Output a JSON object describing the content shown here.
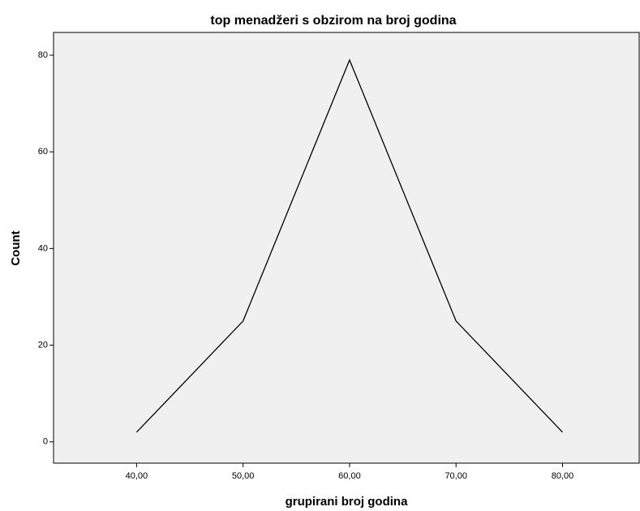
{
  "chart_data": {
    "type": "line",
    "title": "top menadžeri s obzirom na broj godina",
    "x_label": "grupirani broj godina",
    "y_label": "Count",
    "x": [
      40,
      50,
      60,
      70,
      80
    ],
    "series": [
      {
        "color": "#000000",
        "values": [
          2,
          25,
          79,
          25,
          2
        ]
      }
    ],
    "xlim": [
      32.2,
      87.2
    ],
    "xticks": [
      {
        "value": 40,
        "label": "40,00"
      },
      {
        "value": 50,
        "label": "50,00"
      },
      {
        "value": 60,
        "label": "60,00"
      },
      {
        "value": 70,
        "label": "70,00"
      },
      {
        "value": 80,
        "label": "80,00"
      }
    ],
    "ylim": [
      -4.4,
      84.7
    ],
    "yticks": [
      0,
      20,
      40,
      60,
      80
    ],
    "background": "#f0f0f0"
  }
}
